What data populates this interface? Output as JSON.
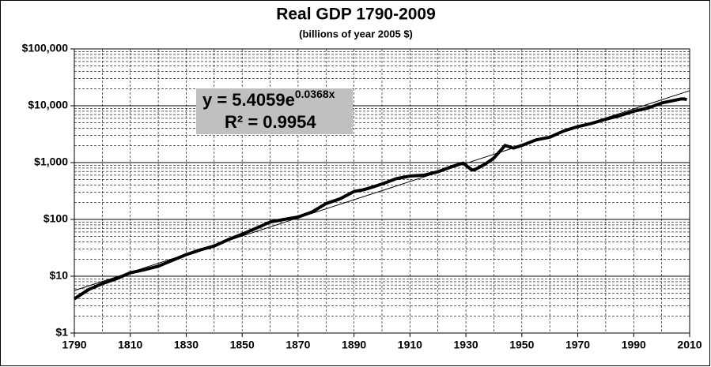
{
  "chart_data": {
    "type": "line",
    "title": "Real GDP 1790-2009",
    "subtitle": "(billions of year 2005 $)",
    "annotation": {
      "equation": "y = 5.4059e",
      "exponent": "0.0368x",
      "r_squared": "R² = 0.9954"
    },
    "log_scale_y": true,
    "grid": true,
    "xlim": [
      1790,
      2010
    ],
    "xticks": [
      1790,
      1810,
      1830,
      1850,
      1870,
      1890,
      1910,
      1930,
      1950,
      1970,
      1990,
      2010
    ],
    "x_minor_ticks": [
      1800,
      1820,
      1840,
      1860,
      1880,
      1900,
      1920,
      1940,
      1960,
      1980,
      2000
    ],
    "ylim": [
      1,
      100000
    ],
    "yticks": [
      {
        "value": 1,
        "label": "$1"
      },
      {
        "value": 10,
        "label": "$10"
      },
      {
        "value": 100,
        "label": "$100"
      },
      {
        "value": 1000,
        "label": "$1,000"
      },
      {
        "value": 10000,
        "label": "$10,000"
      },
      {
        "value": 100000,
        "label": "$100,000"
      }
    ],
    "y_minor_ticks": [
      2,
      3,
      4,
      5,
      6,
      7,
      8,
      9,
      20,
      30,
      40,
      50,
      60,
      70,
      80,
      90,
      200,
      300,
      400,
      500,
      600,
      700,
      800,
      900,
      2000,
      3000,
      4000,
      5000,
      6000,
      7000,
      8000,
      9000,
      20000,
      30000,
      40000,
      50000,
      60000,
      70000,
      80000,
      90000
    ],
    "series": [
      {
        "name": "Real GDP",
        "color": "#000000",
        "width": 4,
        "x": [
          1790,
          1795,
          1800,
          1805,
          1810,
          1815,
          1820,
          1825,
          1830,
          1835,
          1840,
          1845,
          1850,
          1855,
          1860,
          1865,
          1870,
          1875,
          1880,
          1885,
          1890,
          1893,
          1895,
          1900,
          1905,
          1910,
          1915,
          1920,
          1925,
          1929,
          1932,
          1933,
          1937,
          1940,
          1944,
          1947,
          1950,
          1955,
          1960,
          1965,
          1970,
          1975,
          1980,
          1985,
          1990,
          1995,
          2000,
          2005,
          2007,
          2008,
          2009
        ],
        "values": [
          4.0,
          5.8,
          7.4,
          9.0,
          11.5,
          13,
          15,
          19,
          24,
          29,
          34,
          44,
          55,
          70,
          90,
          100,
          110,
          135,
          190,
          230,
          310,
          330,
          350,
          420,
          520,
          580,
          600,
          690,
          850,
          980,
          750,
          740,
          950,
          1200,
          2000,
          1800,
          2000,
          2500,
          2800,
          3600,
          4300,
          4900,
          5800,
          6700,
          8000,
          9100,
          11200,
          12600,
          13200,
          13200,
          12800
        ]
      },
      {
        "name": "Exponential trend",
        "color": "#000000",
        "width": 1,
        "x": [
          1790,
          2010
        ],
        "values": [
          5.6,
          18400
        ]
      }
    ]
  }
}
